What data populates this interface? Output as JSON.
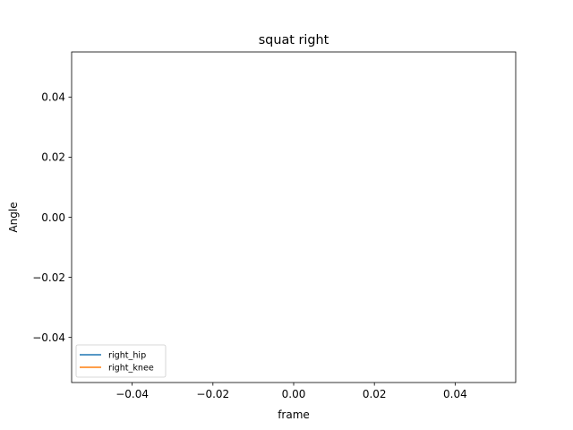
{
  "chart_data": {
    "type": "line",
    "title": "squat right",
    "xlabel": "frame",
    "ylabel": "Angle",
    "xlim": [
      -0.055,
      0.055
    ],
    "ylim": [
      -0.055,
      0.055
    ],
    "xticks": [
      -0.04,
      -0.02,
      0.0,
      0.02,
      0.04
    ],
    "xtick_labels": [
      "−0.04",
      "−0.02",
      "0.00",
      "0.02",
      "0.04"
    ],
    "yticks": [
      -0.04,
      -0.02,
      0.0,
      0.02,
      0.04
    ],
    "ytick_labels": [
      "−0.04",
      "−0.02",
      "0.00",
      "0.02",
      "0.04"
    ],
    "grid": false,
    "legend_position": "lower-left",
    "series": [
      {
        "name": "right_hip",
        "color": "#1f77b4",
        "x": [],
        "y": []
      },
      {
        "name": "right_knee",
        "color": "#ff7f0e",
        "x": [],
        "y": []
      }
    ]
  }
}
